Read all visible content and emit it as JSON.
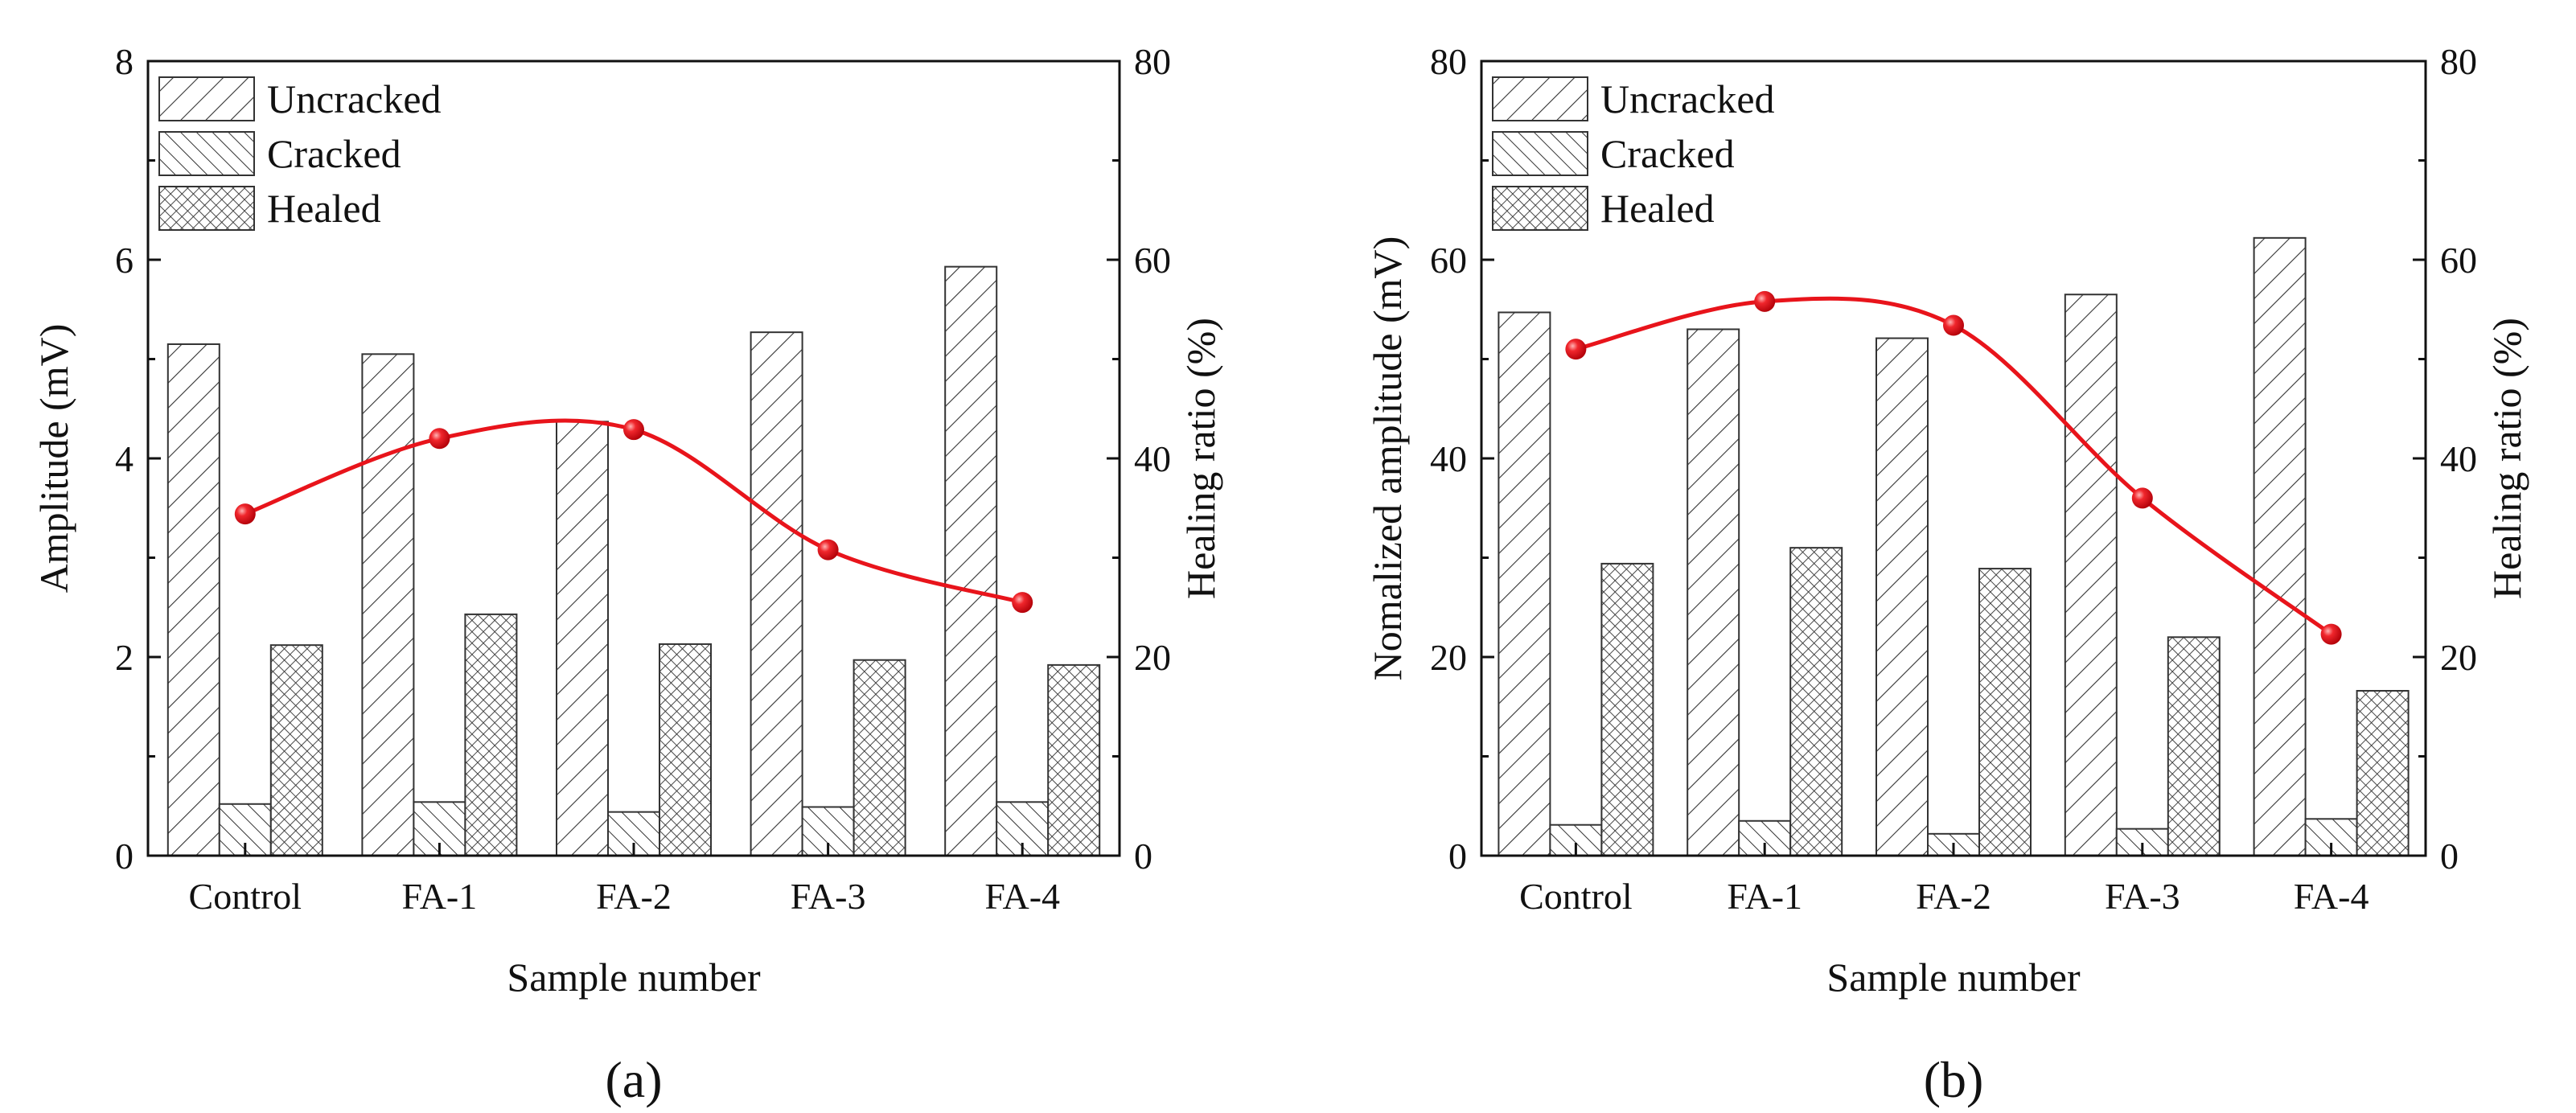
{
  "chart_data": [
    {
      "type": "bar",
      "panel_label": "(a)",
      "categories": [
        "Control",
        "FA-1",
        "FA-2",
        "FA-3",
        "FA-4"
      ],
      "xlabel": "Sample number",
      "ylabel": "Amplitude (mV)",
      "ylim": [
        0,
        8
      ],
      "yticks": [
        0,
        2,
        4,
        6,
        8
      ],
      "y2label": "Healing ratio (%)",
      "y2lim": [
        0,
        80
      ],
      "y2ticks": [
        0,
        20,
        40,
        60,
        80
      ],
      "series": [
        {
          "name": "Uncracked",
          "pattern": "forward-hatch",
          "values": [
            5.15,
            5.05,
            4.37,
            5.27,
            5.93
          ]
        },
        {
          "name": "Cracked",
          "pattern": "back-hatch",
          "values": [
            0.52,
            0.54,
            0.44,
            0.49,
            0.54
          ]
        },
        {
          "name": "Healed",
          "pattern": "cross-hatch",
          "values": [
            2.12,
            2.43,
            2.13,
            1.97,
            1.92
          ]
        }
      ],
      "line_series": {
        "name": "Healing ratio",
        "axis": "right",
        "color": "#e8141b",
        "values": [
          34.4,
          42.0,
          42.9,
          30.8,
          25.5
        ]
      },
      "legend_position": "top-left"
    },
    {
      "type": "bar",
      "panel_label": "(b)",
      "categories": [
        "Control",
        "FA-1",
        "FA-2",
        "FA-3",
        "FA-4"
      ],
      "xlabel": "Sample number",
      "ylabel": "Nomalized amplitude (mV)",
      "ylim": [
        0,
        80
      ],
      "yticks": [
        0,
        20,
        40,
        60,
        80
      ],
      "y2label": "Healing ratio (%)",
      "y2lim": [
        0,
        80
      ],
      "y2ticks": [
        0,
        20,
        40,
        60,
        80
      ],
      "series": [
        {
          "name": "Uncracked",
          "pattern": "forward-hatch",
          "values": [
            54.7,
            53.0,
            52.1,
            56.5,
            62.2
          ]
        },
        {
          "name": "Cracked",
          "pattern": "back-hatch",
          "values": [
            3.1,
            3.5,
            2.2,
            2.7,
            3.7
          ]
        },
        {
          "name": "Healed",
          "pattern": "cross-hatch",
          "values": [
            29.4,
            31.0,
            28.9,
            22.0,
            16.6
          ]
        }
      ],
      "line_series": {
        "name": "Healing ratio",
        "axis": "right",
        "color": "#e8141b",
        "values": [
          51.0,
          55.8,
          53.4,
          36.0,
          22.3
        ]
      },
      "legend_position": "top-left"
    }
  ]
}
